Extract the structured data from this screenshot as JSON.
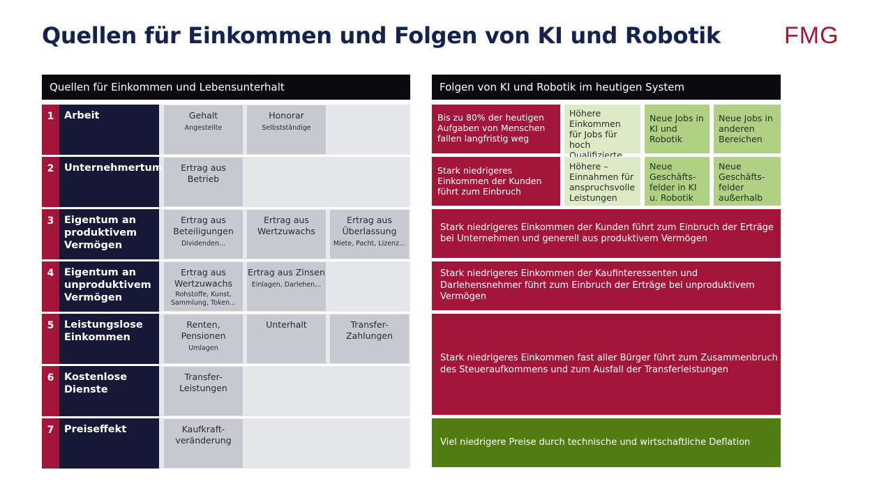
{
  "title": "Quellen für Einkommen und Folgen von KI und Robotik",
  "logo": "FMG",
  "left": {
    "header": "Quellen für Einkommen und Lebensunterhalt",
    "rows": [
      {
        "num": "1",
        "label": "Arbeit",
        "cells": [
          {
            "main": "Gehalt",
            "sub": "Angestellte"
          },
          {
            "main": "Honorar",
            "sub": "Selbstständige"
          }
        ]
      },
      {
        "num": "2",
        "label": "Unternehmertum",
        "cells": [
          {
            "main": "Ertrag aus Betrieb"
          }
        ]
      },
      {
        "num": "3",
        "label": "Eigentum an produktivem Vermögen",
        "cells": [
          {
            "main": "Ertrag aus Beteiligungen",
            "sub": "Dividenden..."
          },
          {
            "main": "Ertrag aus Wertzuwachs"
          },
          {
            "main": "Ertrag aus Überlassung",
            "sub": "Miete, Pacht, Lizenz..."
          }
        ]
      },
      {
        "num": "4",
        "label": "Eigentum an unproduktivem Vermögen",
        "cells": [
          {
            "main": "Ertrag aus Wertzuwachs",
            "sub": "Rohstoffe, Kunst, Sammlung, Token..."
          },
          {
            "main": "Ertrag aus Zinsen",
            "sub": "Einlagen, Darlehen..."
          }
        ]
      },
      {
        "num": "5",
        "label": "Leistungslose Einkommen",
        "cells": [
          {
            "main": "Renten, Pensionen",
            "sub": "Umlagen"
          },
          {
            "main": "Unterhalt"
          },
          {
            "main": "Transfer-Zahlungen"
          }
        ]
      },
      {
        "num": "6",
        "label": "Kostenlose Dienste",
        "cells": [
          {
            "main": "Transfer-Leistungen"
          }
        ]
      },
      {
        "num": "7",
        "label": "Preiseffekt",
        "cells": [
          {
            "main": "Kaufkraft-veränderung"
          }
        ]
      }
    ]
  },
  "right": {
    "header": "Folgen von KI und Robotik im heutigen System",
    "row1": [
      "Bis zu 80% der heutigen Aufgaben von Menschen fallen langfristig weg",
      "Höhere Einkommen für Jobs für hoch Qualifizierte",
      "Neue Jobs in KI und Robotik",
      "Neue Jobs in anderen Bereichen"
    ],
    "row2": [
      "Stark niedrigeres Einkommen der Kunden führt zum Einbruch",
      "Höhere – Einnahmen für anspruchsvolle Leistungen",
      "Neue Geschäfts-felder in KI u. Robotik",
      "Neue Geschäfts-felder außerhalb"
    ],
    "row3": "Stark niedrigeres Einkommen der Kunden führt zum Einbruch der Erträge bei Unternehmen und generell aus produktivem Vermögen",
    "row4": "Stark niedrigeres Einkommen der Kaufinteressenten und Darlehensnehmer führt zum Einbruch der Erträge bei unproduktivem Vermögen",
    "row5": "Stark niedrigeres Einkommen fast aller Bürger führt zum Zusammenbruch des Steueraufkommens und zum Ausfall der Transferleistungen",
    "row7": "Viel niedrigere Preise durch technische und wirtschaftliche Deflation"
  },
  "colors": {
    "title": "#13234e",
    "brand_red": "#a3163a",
    "navy": "#151936",
    "black": "#0b0b0f",
    "light_green": "#dcebc7",
    "mid_green": "#b0d084",
    "dark_green": "#4f7d12"
  }
}
